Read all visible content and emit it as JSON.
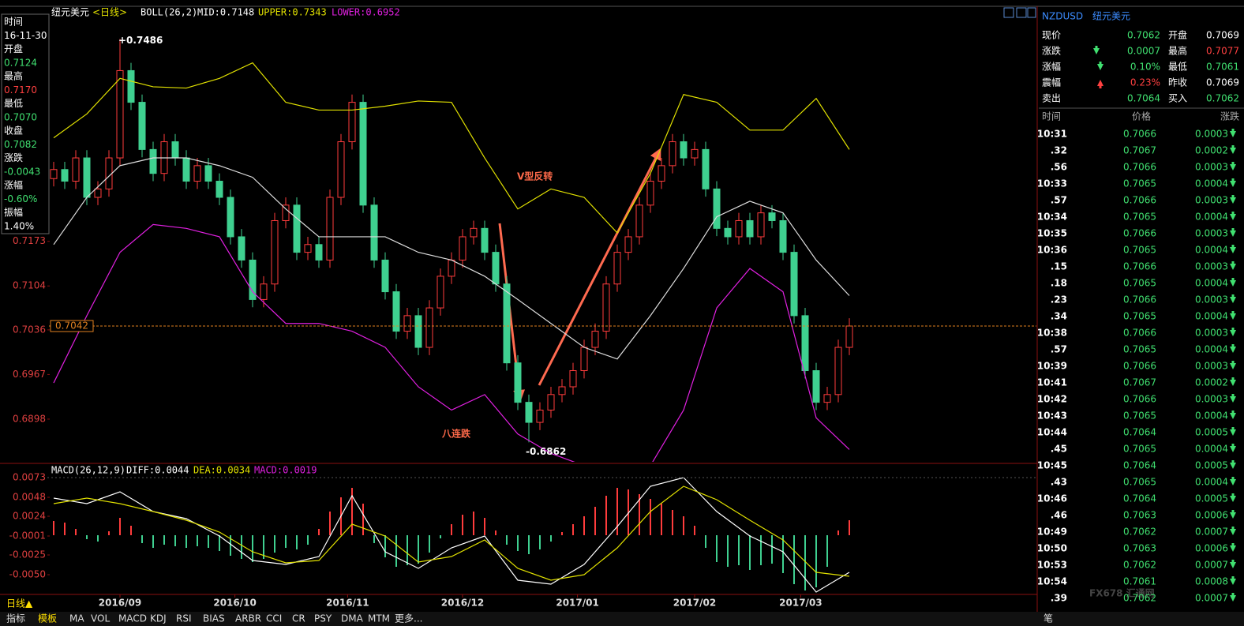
{
  "header": {
    "name": "纽元美元",
    "period": "<日线>",
    "boll": "BOLL(26,2)",
    "mid": "MID:0.7148",
    "upper": "UPPER:0.7343",
    "lower": "LOWER:0.6952"
  },
  "info_panel": [
    {
      "label": "时间",
      "value": "16-11-30",
      "color": "#ffffff"
    },
    {
      "label": "开盘",
      "value": "0.7124",
      "color": "#40e070"
    },
    {
      "label": "最高",
      "value": "0.7170",
      "color": "#ff4040"
    },
    {
      "label": "最低",
      "value": "0.7070",
      "color": "#40e070"
    },
    {
      "label": "收盘",
      "value": "0.7082",
      "color": "#40e070"
    },
    {
      "label": "涨跌",
      "value": "-0.0043",
      "color": "#40e070"
    },
    {
      "label": "涨幅",
      "value": "-0.60%",
      "color": "#40e070"
    },
    {
      "label": "振幅",
      "value": "1.40%",
      "color": "#ffffff"
    }
  ],
  "chart_data": {
    "type": "candlestick",
    "open": [
      0.727,
      0.7284,
      0.7266,
      0.7302,
      0.7241,
      0.7254,
      0.7302,
      0.7437,
      0.7388,
      0.7315,
      0.7278,
      0.7327,
      0.7302,
      0.7266,
      0.729,
      0.7266,
      0.7241,
      0.718,
      0.7144,
      0.7083,
      0.7107,
      0.7205,
      0.7229,
      0.7156,
      0.7168,
      0.7144,
      0.7241,
      0.7327,
      0.7388,
      0.7229,
      0.7144,
      0.7095,
      0.7034,
      0.7058,
      0.7009,
      0.707,
      0.7119,
      0.7144,
      0.718,
      0.7193,
      0.7156,
      0.7107,
      0.6985,
      0.6924,
      0.6893,
      0.6912,
      0.6936,
      0.6948,
      0.6973,
      0.7009,
      0.7034,
      0.7107,
      0.7156,
      0.718,
      0.7229,
      0.7266,
      0.729,
      0.7327,
      0.7302,
      0.7315,
      0.7254,
      0.7193,
      0.718,
      0.7205,
      0.718,
      0.7217,
      0.7205,
      0.7156,
      0.7058,
      0.6973,
      0.6924,
      0.6936,
      0.7009
    ],
    "high": [
      0.7296,
      0.7296,
      0.7314,
      0.7314,
      0.7266,
      0.7314,
      0.7486,
      0.7449,
      0.74,
      0.7327,
      0.7339,
      0.7339,
      0.7314,
      0.7302,
      0.7302,
      0.7278,
      0.7253,
      0.7192,
      0.7156,
      0.7119,
      0.7217,
      0.7241,
      0.7241,
      0.718,
      0.718,
      0.7253,
      0.7339,
      0.74,
      0.74,
      0.7241,
      0.7156,
      0.7107,
      0.707,
      0.707,
      0.7082,
      0.7131,
      0.7156,
      0.7192,
      0.7205,
      0.7205,
      0.7168,
      0.7119,
      0.6997,
      0.6936,
      0.6924,
      0.6948,
      0.696,
      0.6985,
      0.7021,
      0.7046,
      0.7119,
      0.7168,
      0.7192,
      0.7241,
      0.7278,
      0.7302,
      0.7339,
      0.7339,
      0.7327,
      0.7327,
      0.7266,
      0.7205,
      0.7217,
      0.7217,
      0.7229,
      0.7229,
      0.7217,
      0.7168,
      0.707,
      0.6985,
      0.6948,
      0.7021,
      0.7054
    ],
    "low": [
      0.7258,
      0.7254,
      0.7254,
      0.7229,
      0.7229,
      0.7242,
      0.729,
      0.7376,
      0.7303,
      0.7266,
      0.7266,
      0.729,
      0.7254,
      0.7254,
      0.7254,
      0.7229,
      0.7168,
      0.7132,
      0.7071,
      0.7071,
      0.7095,
      0.7193,
      0.7144,
      0.7144,
      0.7132,
      0.7132,
      0.7229,
      0.7315,
      0.7217,
      0.7132,
      0.7083,
      0.7022,
      0.7022,
      0.6997,
      0.6997,
      0.7058,
      0.7107,
      0.7132,
      0.7168,
      0.7144,
      0.7095,
      0.6973,
      0.6912,
      0.6862,
      0.6881,
      0.69,
      0.6924,
      0.6936,
      0.6961,
      0.6997,
      0.7022,
      0.7095,
      0.7144,
      0.7168,
      0.7217,
      0.7254,
      0.7278,
      0.729,
      0.729,
      0.7242,
      0.7181,
      0.7168,
      0.7168,
      0.7168,
      0.7168,
      0.7193,
      0.7144,
      0.7046,
      0.6961,
      0.6912,
      0.6912,
      0.6924,
      0.6997
    ],
    "close": [
      0.7284,
      0.7266,
      0.7302,
      0.7241,
      0.7254,
      0.7302,
      0.7437,
      0.7388,
      0.7315,
      0.7278,
      0.7327,
      0.7302,
      0.7266,
      0.729,
      0.7266,
      0.7241,
      0.718,
      0.7144,
      0.7083,
      0.7107,
      0.7205,
      0.7229,
      0.7156,
      0.7168,
      0.7144,
      0.7241,
      0.7327,
      0.7388,
      0.7229,
      0.7144,
      0.7095,
      0.7034,
      0.7058,
      0.7009,
      0.707,
      0.7119,
      0.7144,
      0.718,
      0.7193,
      0.7156,
      0.7107,
      0.6985,
      0.6924,
      0.6893,
      0.6912,
      0.6936,
      0.6948,
      0.6973,
      0.7009,
      0.7034,
      0.7107,
      0.7156,
      0.718,
      0.7229,
      0.7266,
      0.729,
      0.7327,
      0.7302,
      0.7315,
      0.7254,
      0.7193,
      0.718,
      0.7205,
      0.718,
      0.7217,
      0.7205,
      0.7156,
      0.7058,
      0.6973,
      0.6924,
      0.6936,
      0.7009,
      0.7042
    ],
    "up_color": "#ff3c3c",
    "down_color": "#3fd090",
    "ylim": [
      0.6832,
      0.7534
    ],
    "yticks": [
      0.7173,
      0.7104,
      0.7036,
      0.6967,
      0.6898
    ],
    "current_price": 0.7042,
    "current_label": "0.7042",
    "current_color": "#e08020",
    "x_labels": [
      {
        "value": 6,
        "label": "2016/09"
      },
      {
        "value": 16.4,
        "label": "2016/10"
      },
      {
        "value": 26.6,
        "label": "2016/11"
      },
      {
        "value": 37,
        "label": "2016/12"
      },
      {
        "value": 47.4,
        "label": "2017/01"
      },
      {
        "value": 58,
        "label": "2017/02"
      },
      {
        "value": 67.6,
        "label": "2017/03"
      }
    ],
    "line_x": [
      0,
      3,
      6,
      9,
      12,
      15,
      18,
      21,
      24,
      27,
      30,
      33,
      36,
      39,
      42,
      45,
      48,
      51,
      54,
      57,
      60,
      63,
      66,
      69,
      72
    ],
    "boll": {
      "upper": [
        0.7333,
        0.737,
        0.7425,
        0.7412,
        0.741,
        0.7425,
        0.7449,
        0.7388,
        0.7376,
        0.7376,
        0.7382,
        0.739,
        0.7388,
        0.7302,
        0.7223,
        0.7254,
        0.7241,
        0.7186,
        0.7278,
        0.74,
        0.7388,
        0.7345,
        0.7345,
        0.7394,
        0.7315
      ],
      "mid": [
        0.7168,
        0.7241,
        0.729,
        0.7302,
        0.7302,
        0.729,
        0.7272,
        0.7223,
        0.718,
        0.718,
        0.718,
        0.7156,
        0.7144,
        0.7119,
        0.7083,
        0.7046,
        0.7009,
        0.6991,
        0.7058,
        0.7131,
        0.7211,
        0.7235,
        0.7217,
        0.7144,
        0.7089
      ],
      "lower": [
        0.6954,
        0.7058,
        0.7156,
        0.7199,
        0.7193,
        0.718,
        0.7095,
        0.7046,
        0.7046,
        0.7034,
        0.7009,
        0.6948,
        0.6912,
        0.6936,
        0.6875,
        0.6845,
        0.6826,
        0.6826,
        0.6826,
        0.6912,
        0.707,
        0.7131,
        0.7095,
        0.69,
        0.6851
      ],
      "upper_color": "#e0e000",
      "mid_color": "#dddddd",
      "lower_color": "#e020e0"
    },
    "annotations": {
      "high_label": "+0.7486",
      "low_label": "-0.6862",
      "v_reversal": "V型反转",
      "eight_falls": "八连跌"
    },
    "macd": {
      "title": "MACD(26,12,9)",
      "diff_label": "DIFF:0.0044",
      "dea_label": "DEA:0.0034",
      "macd_label": "MACD:0.0019",
      "ylim": [
        -0.0074,
        0.0086
      ],
      "yticks": [
        0.0073,
        0.0048,
        0.0024,
        -0.0001,
        -0.0025,
        {
          "value": -0.005,
          "label": "-0.0050"
        }
      ],
      "hist": [
        0.0018,
        0.0016,
        0.0008,
        -0.0005,
        -0.0008,
        0.0005,
        0.0022,
        0.0012,
        -0.001,
        -0.0016,
        -0.0012,
        -0.0014,
        -0.0016,
        -0.0014,
        -0.0016,
        -0.002,
        -0.0026,
        -0.003,
        -0.0034,
        -0.003,
        -0.0022,
        -0.0016,
        -0.0018,
        -0.0012,
        0.0008,
        0.003,
        0.0048,
        0.006,
        0.004,
        -0.001,
        -0.0028,
        -0.004,
        -0.0038,
        -0.0036,
        -0.0022,
        -0.0004,
        0.0014,
        0.0026,
        0.003,
        0.0022,
        0.0006,
        -0.0012,
        -0.002,
        -0.0024,
        -0.0018,
        -0.0008,
        0.0004,
        0.0014,
        0.0024,
        0.0036,
        0.005,
        0.006,
        0.0058,
        0.0052,
        0.0046,
        0.004,
        0.0032,
        0.0024,
        0.0012,
        -0.0016,
        -0.0034,
        -0.004,
        -0.0038,
        -0.0044,
        -0.0038,
        -0.0036,
        -0.0048,
        -0.0062,
        -0.007,
        -0.0066,
        -0.004,
        0.0006,
        0.0019
      ],
      "diff": [
        0.0047,
        0.004,
        0.0055,
        0.003,
        0.0021,
        -0.0001,
        -0.0032,
        -0.0037,
        -0.0027,
        0.005,
        -0.0021,
        -0.0042,
        -0.0016,
        -0.0001,
        -0.0057,
        -0.0062,
        -0.0037,
        0.0011,
        0.0062,
        0.0073,
        0.003,
        -0.0001,
        -0.0021,
        -0.0072,
        -0.0047
      ],
      "dea": [
        0.004,
        0.0047,
        0.004,
        0.003,
        0.0019,
        0.0004,
        -0.0021,
        -0.0035,
        -0.0032,
        0.0014,
        -0.0001,
        -0.0034,
        -0.0027,
        -0.0006,
        -0.0042,
        -0.0057,
        -0.005,
        -0.0016,
        0.003,
        0.0062,
        0.0045,
        0.0019,
        -0.0006,
        -0.0047,
        -0.0052
      ],
      "diff_color": "#ffffff",
      "dea_color": "#e0e000"
    }
  },
  "quote": {
    "code": "NZDUSD",
    "name": "纽元美元",
    "items": [
      {
        "label": "现价",
        "value": "0.7062",
        "color": "#40e070"
      },
      {
        "label": "开盘",
        "value": "0.7069",
        "color": "#ffffff"
      },
      {
        "label": "涨跌",
        "value": "0.0007",
        "color": "#40e070"
      },
      {
        "label": "最高",
        "value": "0.7077",
        "color": "#ff4040"
      },
      {
        "label": "涨幅",
        "value": "0.10%",
        "color": "#40e070"
      },
      {
        "label": "最低",
        "value": "0.7061",
        "color": "#40e070"
      },
      {
        "label": "震幅",
        "value": "0.23%",
        "color": "#ff4040"
      },
      {
        "label": "昨收",
        "value": "0.7069",
        "color": "#ffffff"
      },
      {
        "label": "卖出",
        "value": "0.7064",
        "color": "#40e070"
      },
      {
        "label": "买入",
        "value": "0.7062",
        "color": "#40e070"
      }
    ]
  },
  "ticks": {
    "header": [
      "时间",
      "价格",
      "涨跌"
    ],
    "color": "#40e070",
    "rows": [
      [
        "10:31",
        "0.7066",
        "0.0003"
      ],
      [
        ".32",
        "0.7067",
        "0.0002"
      ],
      [
        ".56",
        "0.7066",
        "0.0003"
      ],
      [
        "10:33",
        "0.7065",
        "0.0004"
      ],
      [
        ".57",
        "0.7066",
        "0.0003"
      ],
      [
        "10:34",
        "0.7065",
        "0.0004"
      ],
      [
        "10:35",
        "0.7066",
        "0.0003"
      ],
      [
        "10:36",
        "0.7065",
        "0.0004"
      ],
      [
        ".15",
        "0.7066",
        "0.0003"
      ],
      [
        ".18",
        "0.7065",
        "0.0004"
      ],
      [
        ".23",
        "0.7066",
        "0.0003"
      ],
      [
        ".34",
        "0.7065",
        "0.0004"
      ],
      [
        "10:38",
        "0.7066",
        "0.0003"
      ],
      [
        ".57",
        "0.7065",
        "0.0004"
      ],
      [
        "10:39",
        "0.7066",
        "0.0003"
      ],
      [
        "10:41",
        "0.7067",
        "0.0002"
      ],
      [
        "10:42",
        "0.7066",
        "0.0003"
      ],
      [
        "10:43",
        "0.7065",
        "0.0004"
      ],
      [
        "10:44",
        "0.7064",
        "0.0005"
      ],
      [
        ".45",
        "0.7065",
        "0.0004"
      ],
      [
        "10:45",
        "0.7064",
        "0.0005"
      ],
      [
        ".43",
        "0.7065",
        "0.0004"
      ],
      [
        "10:46",
        "0.7064",
        "0.0005"
      ],
      [
        ".46",
        "0.7063",
        "0.0006"
      ],
      [
        "10:49",
        "0.7062",
        "0.0007"
      ],
      [
        "10:50",
        "0.7063",
        "0.0006"
      ],
      [
        "10:53",
        "0.7062",
        "0.0007"
      ],
      [
        "10:54",
        "0.7061",
        "0.0008"
      ],
      [
        ".39",
        "0.7062",
        "0.0007"
      ]
    ]
  },
  "period_button": "日线▲",
  "tabs": [
    "指标",
    "模板",
    "MA",
    "VOL",
    "MACD",
    "KDJ",
    "RSI",
    "BIAS",
    "ARBR",
    "CCI",
    "CR",
    "PSY",
    "DMA",
    "MTM",
    "更多..."
  ],
  "bottom_right": "笔",
  "watermark": "FX678 汇通网"
}
